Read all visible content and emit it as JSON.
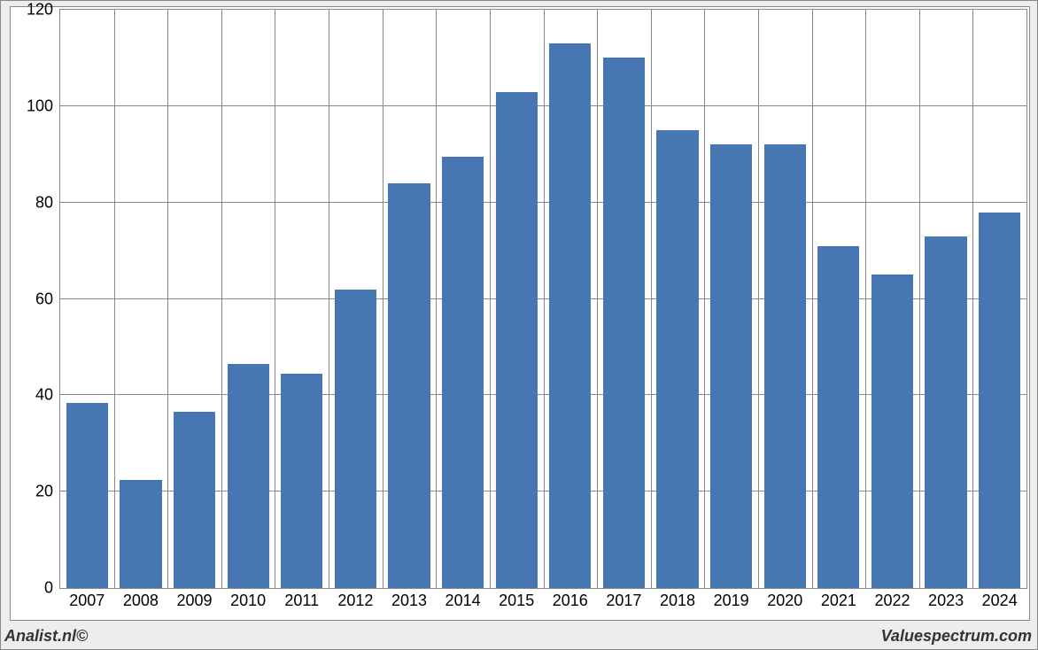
{
  "chart": {
    "type": "bar",
    "background_color": "#ffffff",
    "frame_background_color": "#eceded",
    "border_color": "#888888",
    "grid_color": "#888888",
    "bar_color": "#4677b2",
    "bar_fill_ratio": 0.78,
    "label_fontsize": 18,
    "label_color": "#000000",
    "ylim": [
      0,
      120
    ],
    "ytick_step": 20,
    "yticks": [
      0,
      20,
      40,
      60,
      80,
      100,
      120
    ],
    "categories": [
      "2007",
      "2008",
      "2009",
      "2010",
      "2011",
      "2012",
      "2013",
      "2014",
      "2015",
      "2016",
      "2017",
      "2018",
      "2019",
      "2020",
      "2021",
      "2022",
      "2023",
      "2024"
    ],
    "values": [
      38.5,
      22.5,
      36.5,
      46.5,
      44.5,
      62.0,
      84.0,
      89.5,
      103.0,
      113.0,
      110.0,
      95.0,
      92.0,
      92.0,
      71.0,
      65.0,
      73.0,
      78.0
    ]
  },
  "footer": {
    "left": "Analist.nl©",
    "right": "Valuespectrum.com"
  }
}
